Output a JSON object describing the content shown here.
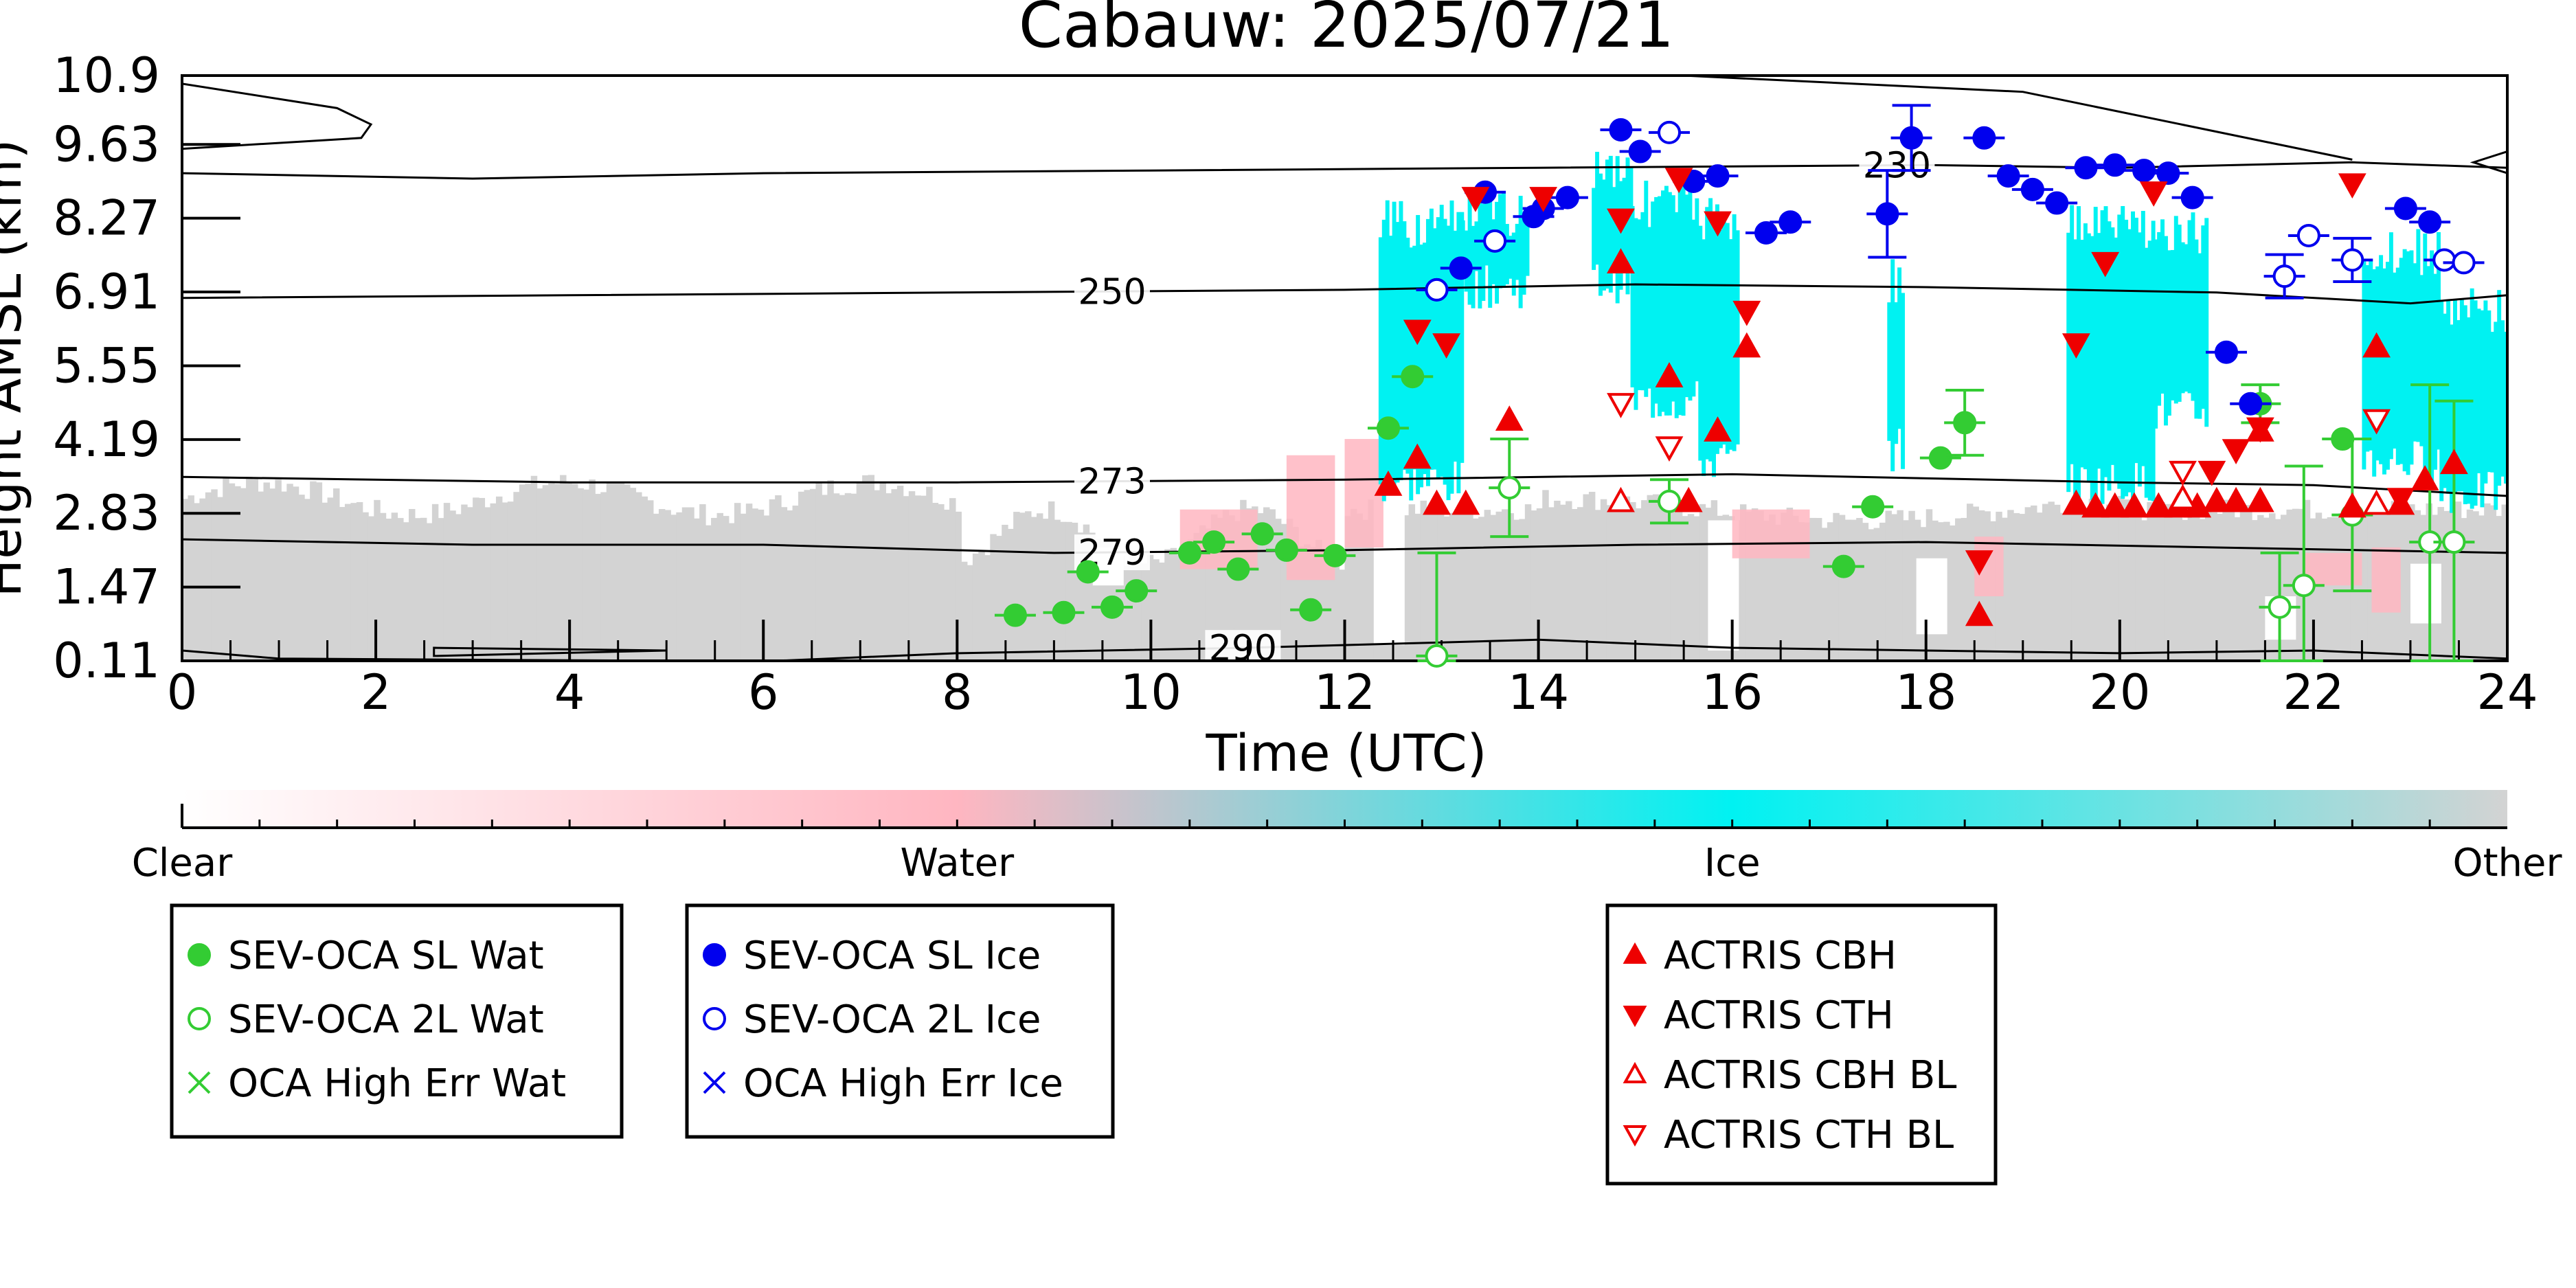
{
  "chart_data": {
    "type": "scatter",
    "title": "Cabauw: 2025/07/21",
    "xlabel": "Time (UTC)",
    "ylabel": "Height AMSL (km)",
    "xlim": [
      0,
      24
    ],
    "ylim": [
      0.11,
      10.9
    ],
    "xticks": [
      0,
      2,
      4,
      6,
      8,
      10,
      12,
      14,
      16,
      18,
      20,
      22,
      24
    ],
    "yticks": [
      0.11,
      1.47,
      2.83,
      4.19,
      5.55,
      6.91,
      8.27,
      9.63,
      10.9
    ],
    "ytick_labels": [
      "0.11",
      "1.47",
      "2.83",
      "4.19",
      "5.55",
      "6.91",
      "8.27",
      "9.63",
      "10.9"
    ],
    "grid": false,
    "colors": {
      "water_point": "#33cc33",
      "ice_point": "#0000ee",
      "actris": "#ee0000",
      "cloud_ice": "#00f2f2",
      "cloud_water": "#ffb6c1",
      "other": "#d3d3d3"
    },
    "colorbar": {
      "labels": [
        "Clear",
        "Water",
        "Ice",
        "Other"
      ],
      "stops": [
        "#ffffff",
        "#ffb6c1",
        "#00f2f2",
        "#d3d3d3"
      ]
    },
    "isotherms": [
      {
        "label": "230",
        "label_x": 17.7,
        "points": [
          [
            0,
            9.1
          ],
          [
            3,
            9.0
          ],
          [
            6,
            9.1
          ],
          [
            10,
            9.15
          ],
          [
            14,
            9.2
          ],
          [
            18,
            9.25
          ],
          [
            20,
            9.2
          ],
          [
            22.4,
            9.3
          ],
          [
            24,
            9.2
          ]
        ]
      },
      {
        "label": "250",
        "label_x": 9.6,
        "points": [
          [
            0,
            6.8
          ],
          [
            4,
            6.85
          ],
          [
            8,
            6.9
          ],
          [
            12,
            6.95
          ],
          [
            15,
            7.05
          ],
          [
            18,
            7.0
          ],
          [
            21,
            6.9
          ],
          [
            23,
            6.7
          ],
          [
            24,
            6.85
          ]
        ]
      },
      {
        "label": "273",
        "label_x": 9.6,
        "points": [
          [
            0,
            3.5
          ],
          [
            4,
            3.4
          ],
          [
            8,
            3.4
          ],
          [
            12,
            3.45
          ],
          [
            16,
            3.55
          ],
          [
            20,
            3.4
          ],
          [
            22,
            3.35
          ],
          [
            24,
            3.15
          ]
        ]
      },
      {
        "label": "279",
        "label_x": 9.6,
        "points": [
          [
            0,
            2.35
          ],
          [
            3,
            2.25
          ],
          [
            6,
            2.25
          ],
          [
            9,
            2.1
          ],
          [
            12,
            2.15
          ],
          [
            15,
            2.25
          ],
          [
            18,
            2.3
          ],
          [
            21,
            2.2
          ],
          [
            24,
            2.1
          ]
        ]
      },
      {
        "label": "290",
        "label_x": 10.95,
        "points": [
          [
            0,
            0.3
          ],
          [
            1,
            0.15
          ],
          [
            6,
            0.1
          ],
          [
            8,
            0.25
          ],
          [
            11,
            0.35
          ],
          [
            13,
            0.45
          ],
          [
            14,
            0.5
          ],
          [
            16,
            0.35
          ],
          [
            18,
            0.3
          ],
          [
            20,
            0.25
          ],
          [
            22,
            0.3
          ],
          [
            24,
            0.15
          ]
        ]
      }
    ],
    "series": [
      {
        "name": "SEV-OCA SL Wat",
        "marker": "circle",
        "filled": true,
        "color": "#33cc33",
        "points": [
          [
            8.6,
            0.95,
            0
          ],
          [
            9.1,
            1.0,
            0
          ],
          [
            9.35,
            1.75,
            0
          ],
          [
            9.6,
            1.1,
            0
          ],
          [
            9.85,
            1.4,
            0
          ],
          [
            10.4,
            2.1,
            0
          ],
          [
            10.65,
            2.3,
            0
          ],
          [
            10.9,
            1.8,
            0
          ],
          [
            11.15,
            2.45,
            0
          ],
          [
            11.4,
            2.15,
            0
          ],
          [
            11.65,
            1.05,
            0
          ],
          [
            11.9,
            2.05,
            0
          ],
          [
            12.45,
            4.4,
            0
          ],
          [
            12.7,
            5.35,
            0
          ],
          [
            17.15,
            1.85,
            0
          ],
          [
            17.45,
            2.95,
            0
          ],
          [
            18.15,
            3.85,
            0
          ],
          [
            18.4,
            4.5,
            0.6
          ],
          [
            21.45,
            4.85,
            0.35
          ],
          [
            22.3,
            4.2,
            0
          ]
        ]
      },
      {
        "name": "SEV-OCA 2L Wat",
        "marker": "circle",
        "filled": false,
        "color": "#33cc33",
        "points": [
          [
            12.95,
            0.2,
            1.9
          ],
          [
            13.7,
            3.3,
            0.9
          ],
          [
            15.35,
            3.05,
            0.4
          ],
          [
            21.65,
            1.1,
            1.0
          ],
          [
            21.9,
            1.5,
            2.2
          ],
          [
            22.4,
            2.8,
            1.4
          ],
          [
            23.2,
            2.3,
            2.9
          ],
          [
            23.45,
            2.3,
            2.6
          ]
        ]
      },
      {
        "name": "OCA High Err Wat",
        "marker": "x",
        "filled": false,
        "color": "#33cc33",
        "points": []
      },
      {
        "name": "SEV-OCA SL Ice",
        "marker": "circle",
        "filled": true,
        "color": "#0000ee",
        "points": [
          [
            12.95,
            6.95,
            0
          ],
          [
            13.2,
            7.35,
            0
          ],
          [
            13.45,
            8.75,
            0
          ],
          [
            13.95,
            8.3,
            0
          ],
          [
            14.05,
            8.45,
            0
          ],
          [
            14.3,
            8.65,
            0
          ],
          [
            14.85,
            9.9,
            0
          ],
          [
            15.05,
            9.5,
            0
          ],
          [
            15.6,
            8.95,
            0
          ],
          [
            15.85,
            9.05,
            0
          ],
          [
            16.35,
            8.0,
            0
          ],
          [
            16.6,
            8.2,
            0
          ],
          [
            17.6,
            8.35,
            0.8
          ],
          [
            17.85,
            9.75,
            0.6
          ],
          [
            18.6,
            9.75,
            0
          ],
          [
            18.85,
            9.05,
            0
          ],
          [
            19.1,
            8.8,
            0
          ],
          [
            19.35,
            8.55,
            0
          ],
          [
            19.65,
            9.2,
            0
          ],
          [
            19.95,
            9.25,
            0
          ],
          [
            20.25,
            9.15,
            0
          ],
          [
            20.5,
            9.1,
            0
          ],
          [
            20.75,
            8.65,
            0
          ],
          [
            21.1,
            5.8,
            0
          ],
          [
            21.35,
            4.85,
            0
          ],
          [
            22.95,
            8.45,
            0
          ],
          [
            23.2,
            8.2,
            0
          ]
        ]
      },
      {
        "name": "SEV-OCA 2L Ice",
        "marker": "circle",
        "filled": false,
        "color": "#0000ee",
        "points": [
          [
            12.95,
            6.95,
            0
          ],
          [
            13.55,
            7.85,
            0
          ],
          [
            15.35,
            9.85,
            0
          ],
          [
            21.7,
            7.2,
            0.4
          ],
          [
            21.95,
            7.95,
            0
          ],
          [
            22.4,
            7.5,
            0.4
          ],
          [
            23.35,
            7.5,
            0
          ],
          [
            23.55,
            7.45,
            0
          ]
        ]
      },
      {
        "name": "OCA High Err Ice",
        "marker": "x",
        "filled": false,
        "color": "#0000ee",
        "points": []
      },
      {
        "name": "ACTRIS CBH",
        "marker": "triangle-up",
        "filled": true,
        "color": "#ee0000",
        "points": [
          [
            12.45,
            3.35
          ],
          [
            12.75,
            3.85
          ],
          [
            12.95,
            3.0
          ],
          [
            13.25,
            3.0
          ],
          [
            13.7,
            4.55
          ],
          [
            14.85,
            7.45
          ],
          [
            15.35,
            5.35
          ],
          [
            15.55,
            3.05
          ],
          [
            15.85,
            4.35
          ],
          [
            16.15,
            5.9
          ],
          [
            18.55,
            0.95
          ],
          [
            19.55,
            3.0
          ],
          [
            19.75,
            2.95
          ],
          [
            19.95,
            2.95
          ],
          [
            20.15,
            2.95
          ],
          [
            20.4,
            2.95
          ],
          [
            20.6,
            2.95
          ],
          [
            20.8,
            2.95
          ],
          [
            21.0,
            3.05
          ],
          [
            21.2,
            3.05
          ],
          [
            21.45,
            3.05
          ],
          [
            21.45,
            4.35
          ],
          [
            22.4,
            2.95
          ],
          [
            22.65,
            5.9
          ],
          [
            22.9,
            3.0
          ],
          [
            23.15,
            3.45
          ],
          [
            23.45,
            3.75
          ]
        ]
      },
      {
        "name": "ACTRIS CTH",
        "marker": "triangle-down",
        "filled": true,
        "color": "#ee0000",
        "points": [
          [
            12.75,
            6.2
          ],
          [
            13.05,
            5.95
          ],
          [
            13.35,
            8.65
          ],
          [
            14.05,
            8.65
          ],
          [
            14.85,
            8.25
          ],
          [
            15.45,
            9.0
          ],
          [
            15.85,
            8.2
          ],
          [
            16.15,
            6.55
          ],
          [
            18.55,
            1.95
          ],
          [
            19.55,
            5.95
          ],
          [
            19.85,
            7.45
          ],
          [
            20.35,
            8.75
          ],
          [
            20.95,
            3.6
          ],
          [
            21.2,
            4.0
          ],
          [
            21.45,
            4.4
          ],
          [
            22.4,
            8.9
          ],
          [
            22.9,
            3.1
          ]
        ]
      },
      {
        "name": "ACTRIS CBH BL",
        "marker": "triangle-up",
        "filled": false,
        "color": "#ee0000",
        "points": [
          [
            14.85,
            3.05
          ],
          [
            20.65,
            3.1
          ],
          [
            22.65,
            3.0
          ]
        ]
      },
      {
        "name": "ACTRIS CTH BL",
        "marker": "triangle-down",
        "filled": false,
        "color": "#ee0000",
        "points": [
          [
            14.85,
            4.85
          ],
          [
            15.35,
            4.05
          ],
          [
            20.65,
            3.6
          ],
          [
            22.65,
            4.55
          ]
        ]
      }
    ],
    "legends": [
      [
        "SEV-OCA SL Wat",
        "SEV-OCA 2L Wat",
        "OCA High Err Wat"
      ],
      [
        "SEV-OCA SL Ice",
        "SEV-OCA 2L Ice",
        "OCA High Err Ice"
      ],
      [
        "ACTRIS CBH",
        "ACTRIS CTH",
        "ACTRIS CBH BL",
        "ACTRIS CTH BL"
      ]
    ]
  }
}
